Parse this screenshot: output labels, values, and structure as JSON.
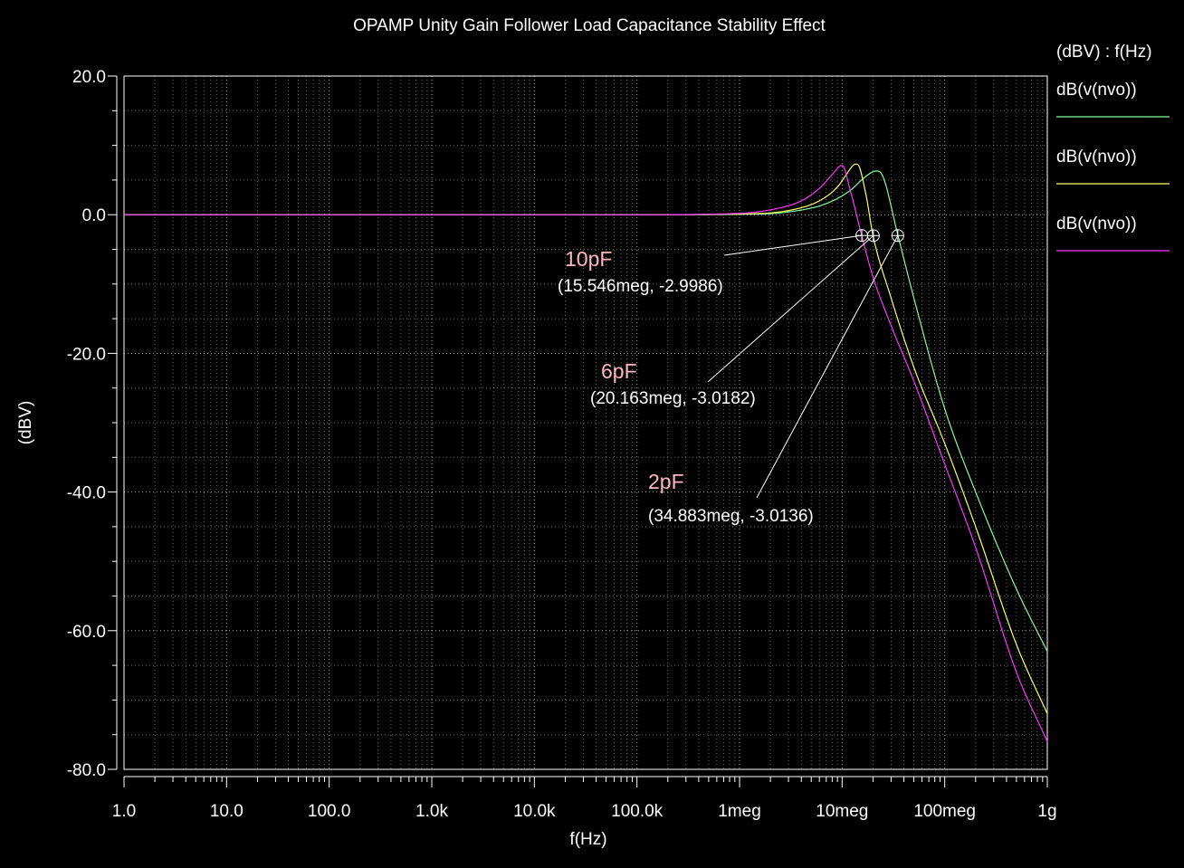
{
  "chart_data": {
    "type": "line",
    "title": "OPAMP Unity Gain Follower Load Capacitance Stability Effect",
    "xlabel": "f(Hz)",
    "ylabel": "(dBV)",
    "x_scale": "log",
    "xlim": [
      1,
      1000000000
    ],
    "ylim": [
      -80,
      20
    ],
    "x_ticks": [
      {
        "value": 1,
        "label": "1.0"
      },
      {
        "value": 10,
        "label": "10.0"
      },
      {
        "value": 100,
        "label": "100.0"
      },
      {
        "value": 1000,
        "label": "1.0k"
      },
      {
        "value": 10000,
        "label": "10.0k"
      },
      {
        "value": 100000,
        "label": "100.0k"
      },
      {
        "value": 1000000,
        "label": "1meg"
      },
      {
        "value": 10000000,
        "label": "10meg"
      },
      {
        "value": 100000000,
        "label": "100meg"
      },
      {
        "value": 1000000000,
        "label": "1g"
      }
    ],
    "y_ticks": [
      {
        "value": 20,
        "label": "20.0"
      },
      {
        "value": 0,
        "label": "0.0"
      },
      {
        "value": -20,
        "label": "-20.0"
      },
      {
        "value": -40,
        "label": "-40.0"
      },
      {
        "value": -60,
        "label": "-60.0"
      },
      {
        "value": -80,
        "label": "-80.0"
      }
    ],
    "grid": true,
    "legend": {
      "position": "right",
      "header": "(dBV) : f(Hz)"
    },
    "series": [
      {
        "name": "dB(v(nvo))",
        "color": "#7fffa0",
        "x": [
          1,
          100000,
          1000000,
          3000000,
          7000000,
          12000000,
          16000000,
          20000000,
          22000000,
          25000000,
          35000000,
          50000000,
          100000000,
          200000000,
          500000000,
          1000000000
        ],
        "y": [
          0,
          0,
          0.05,
          0.4,
          1.6,
          3.5,
          5.2,
          6.2,
          6.3,
          5.5,
          -3.0,
          -12,
          -28,
          -40,
          -54,
          -63
        ]
      },
      {
        "name": "dB(v(nvo))",
        "color": "#ffff66",
        "x": [
          1,
          100000,
          1000000,
          3000000,
          6000000,
          9000000,
          11000000,
          13000000,
          14000000,
          17000000,
          20000000,
          30000000,
          50000000,
          100000000,
          200000000,
          500000000,
          1000000000
        ],
        "y": [
          0,
          0,
          0.1,
          0.6,
          2.0,
          4.0,
          5.8,
          7.2,
          7.3,
          3.0,
          -3.0,
          -12,
          -22,
          -33,
          -45,
          -62,
          -72
        ]
      },
      {
        "name": "dB(v(nvo))",
        "color": "#ff33ff",
        "x": [
          1,
          100000,
          1000000,
          2000000,
          4000000,
          6000000,
          8000000,
          9500000,
          10000000,
          12000000,
          15500000,
          20000000,
          30000000,
          50000000,
          100000000,
          200000000,
          500000000,
          1000000000
        ],
        "y": [
          0,
          0,
          0.2,
          0.7,
          2.0,
          3.8,
          5.8,
          7.0,
          7.1,
          3.5,
          -3.0,
          -9,
          -16,
          -24,
          -36,
          -48,
          -66,
          -76
        ]
      }
    ],
    "annotations": [
      {
        "label": "10pF",
        "coords": "(15.546meg, -2.9986)",
        "x": 15546000,
        "y": -2.9986
      },
      {
        "label": "6pF",
        "coords": "(20.163meg, -3.0182)",
        "x": 20163000,
        "y": -3.0182
      },
      {
        "label": "2pF",
        "coords": "(34.883meg, -3.0136)",
        "x": 34883000,
        "y": -3.0136
      }
    ]
  }
}
